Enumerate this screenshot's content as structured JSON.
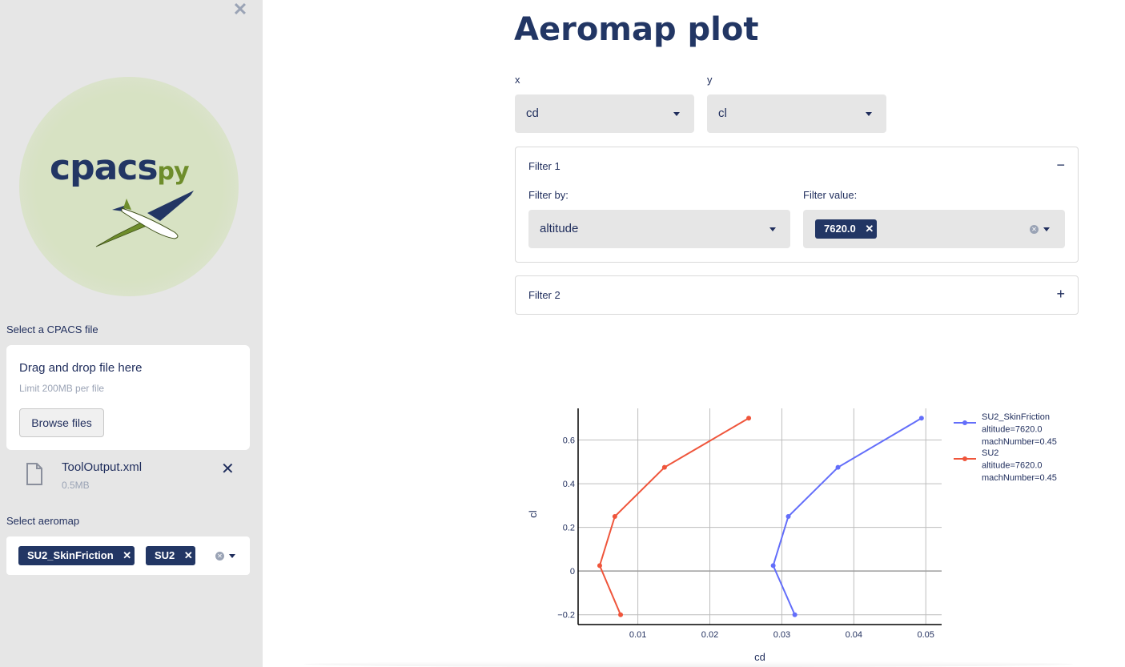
{
  "sidebar": {
    "close_label": "✕",
    "logo": {
      "brand": "cpacs",
      "suffix": "py"
    },
    "select_file_label": "Select a CPACS file",
    "uploader": {
      "title": "Drag and drop file here",
      "limit": "Limit 200MB per file",
      "browse_label": "Browse files"
    },
    "file": {
      "name": "ToolOutput.xml",
      "size": "0.5MB",
      "remove_label": "✕"
    },
    "select_aeromap_label": "Select aeromap",
    "aeromap_chips": [
      {
        "label": "SU2_SkinFriction",
        "remove": "✕"
      },
      {
        "label": "SU2",
        "remove": "✕"
      }
    ]
  },
  "main": {
    "title": "Aeromap plot",
    "x_select": {
      "label": "x",
      "value": "cd"
    },
    "y_select": {
      "label": "y",
      "value": "cl"
    },
    "filter1": {
      "header": "Filter 1",
      "toggle": "−",
      "filter_by_label": "Filter by:",
      "filter_by_value": "altitude",
      "filter_value_label": "Filter value:",
      "filter_value_chip": "7620.0",
      "chip_remove": "✕"
    },
    "filter2": {
      "header": "Filter 2",
      "toggle": "+"
    }
  },
  "colors": {
    "navy": "#223664",
    "sidebar_bg": "#e6e6e6",
    "series_blue": "#636efa",
    "series_red": "#ef553b"
  },
  "chart_data": {
    "type": "line",
    "xlabel": "cd",
    "ylabel": "cl",
    "xticks": [
      "0.01",
      "0.02",
      "0.03",
      "0.04",
      "0.05"
    ],
    "yticks": [
      "−0.2",
      "0",
      "0.2",
      "0.4",
      "0.6"
    ],
    "xlim": [
      0.0017,
      0.0522
    ],
    "ylim": [
      -0.245,
      0.745
    ],
    "grid": true,
    "legend_position": "right",
    "series": [
      {
        "name": "SU2_SkinFriction",
        "legend_lines": [
          "SU2_SkinFriction",
          "altitude=7620.0",
          "machNumber=0.45"
        ],
        "color": "#636efa",
        "x": [
          0.0318,
          0.0288,
          0.0309,
          0.0378,
          0.0494
        ],
        "y": [
          -0.2,
          0.025,
          0.25,
          0.475,
          0.7
        ]
      },
      {
        "name": "SU2",
        "legend_lines": [
          "SU2",
          "altitude=7620.0",
          "machNumber=0.45"
        ],
        "color": "#ef553b",
        "x": [
          0.0076,
          0.0047,
          0.0068,
          0.0137,
          0.0254
        ],
        "y": [
          -0.2,
          0.025,
          0.25,
          0.475,
          0.7
        ]
      }
    ]
  }
}
